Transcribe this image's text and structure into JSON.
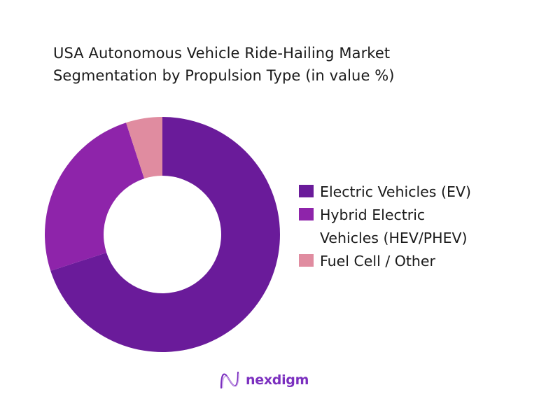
{
  "chart_data": {
    "type": "pie",
    "subtype": "donut",
    "title": "USA Autonomous Vehicle Ride-Hailing Market Segmentation by Propulsion Type (in value %)",
    "title_lines": [
      "USA Autonomous Vehicle Ride-Hailing Market",
      "Segmentation by Propulsion Type (in value %)"
    ],
    "categories": [
      "Electric Vehicles (EV)",
      "Hybrid Electric Vehicles (HEV/PHEV)",
      "Fuel Cell / Other"
    ],
    "values": [
      70,
      25,
      5
    ],
    "colors": [
      "#6a1b9a",
      "#8e24aa",
      "#e08ca0"
    ],
    "start_angle_deg": 0,
    "direction": "clockwise",
    "legend_position": "right",
    "data_labels": false
  },
  "legend": {
    "items": [
      {
        "label_lines": [
          "Electric Vehicles (EV)"
        ],
        "color": "#6a1b9a"
      },
      {
        "label_lines": [
          "Hybrid Electric",
          "Vehicles (HEV/PHEV)"
        ],
        "color": "#8e24aa"
      },
      {
        "label_lines": [
          "Fuel Cell / Other"
        ],
        "color": "#e08ca0"
      }
    ]
  },
  "branding": {
    "logo_text": "nexdigm",
    "logo_icon": "wave-n-icon",
    "color": "#7b2fbf"
  }
}
